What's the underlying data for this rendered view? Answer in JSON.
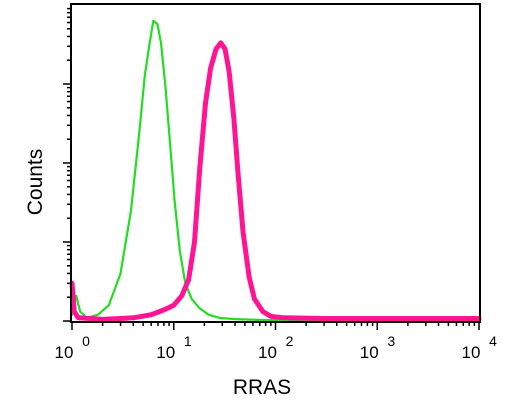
{
  "chart_data": {
    "type": "line",
    "xlabel": "RRAS",
    "ylabel": "Counts",
    "x_scale": "log",
    "xlim": [
      1,
      10000
    ],
    "ylim": [
      0,
      100
    ],
    "x_ticks": [
      {
        "base": "10",
        "exp": "0"
      },
      {
        "base": "10",
        "exp": "1"
      },
      {
        "base": "10",
        "exp": "2"
      },
      {
        "base": "10",
        "exp": "3"
      },
      {
        "base": "10",
        "exp": "4"
      }
    ],
    "grid": false,
    "legend": "none",
    "series": [
      {
        "color": "#22dd22",
        "stroke": "thin",
        "points": [
          [
            1.0,
            2
          ],
          [
            1.1,
            8
          ],
          [
            1.2,
            3
          ],
          [
            1.4,
            1
          ],
          [
            1.8,
            2
          ],
          [
            2.3,
            5
          ],
          [
            3.0,
            15
          ],
          [
            3.8,
            35
          ],
          [
            4.6,
            60
          ],
          [
            5.2,
            78
          ],
          [
            5.8,
            88
          ],
          [
            6.3,
            95
          ],
          [
            6.9,
            94
          ],
          [
            7.5,
            88
          ],
          [
            8.3,
            74
          ],
          [
            9.2,
            56
          ],
          [
            10.2,
            38
          ],
          [
            11.5,
            22
          ],
          [
            13.0,
            12
          ],
          [
            15.0,
            7
          ],
          [
            18.0,
            4
          ],
          [
            22.0,
            2
          ],
          [
            28.0,
            1
          ],
          [
            40.0,
            0.6
          ],
          [
            80.0,
            0.3
          ],
          [
            10000.0,
            0.3
          ]
        ]
      },
      {
        "color": "#ff1493",
        "stroke": "thick",
        "points": [
          [
            1.0,
            12
          ],
          [
            1.05,
            3
          ],
          [
            1.15,
            1
          ],
          [
            2.0,
            0.5
          ],
          [
            4.0,
            1
          ],
          [
            6.0,
            2
          ],
          [
            8.0,
            3.5
          ],
          [
            10.0,
            5
          ],
          [
            12.0,
            8
          ],
          [
            14.0,
            13
          ],
          [
            16.0,
            25
          ],
          [
            18.0,
            48
          ],
          [
            20.5,
            69
          ],
          [
            23.0,
            80
          ],
          [
            26.0,
            86
          ],
          [
            29.0,
            88
          ],
          [
            32.0,
            86
          ],
          [
            35.0,
            79
          ],
          [
            39.0,
            64
          ],
          [
            43.0,
            46
          ],
          [
            48.0,
            28
          ],
          [
            55.0,
            14
          ],
          [
            62.0,
            7
          ],
          [
            75.0,
            3
          ],
          [
            90.0,
            1.5
          ],
          [
            120.0,
            1
          ],
          [
            300.0,
            0.8
          ],
          [
            10000.0,
            0.8
          ]
        ]
      }
    ]
  }
}
